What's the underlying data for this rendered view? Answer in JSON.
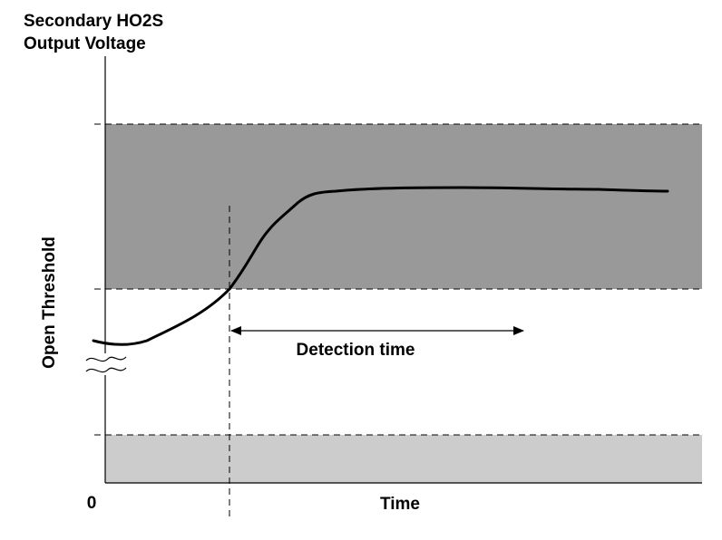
{
  "title": {
    "line1": "Secondary HO2S",
    "line2": "Output Voltage"
  },
  "y_axis_label": "Open Threshold",
  "x_axis_label": "Time",
  "origin_label": "0",
  "detection_label": "Detection time",
  "colors": {
    "upper_band": "#999999",
    "lower_band": "#cccccc",
    "curve": "#000000",
    "axis": "#000000",
    "background": "#ffffff"
  }
}
